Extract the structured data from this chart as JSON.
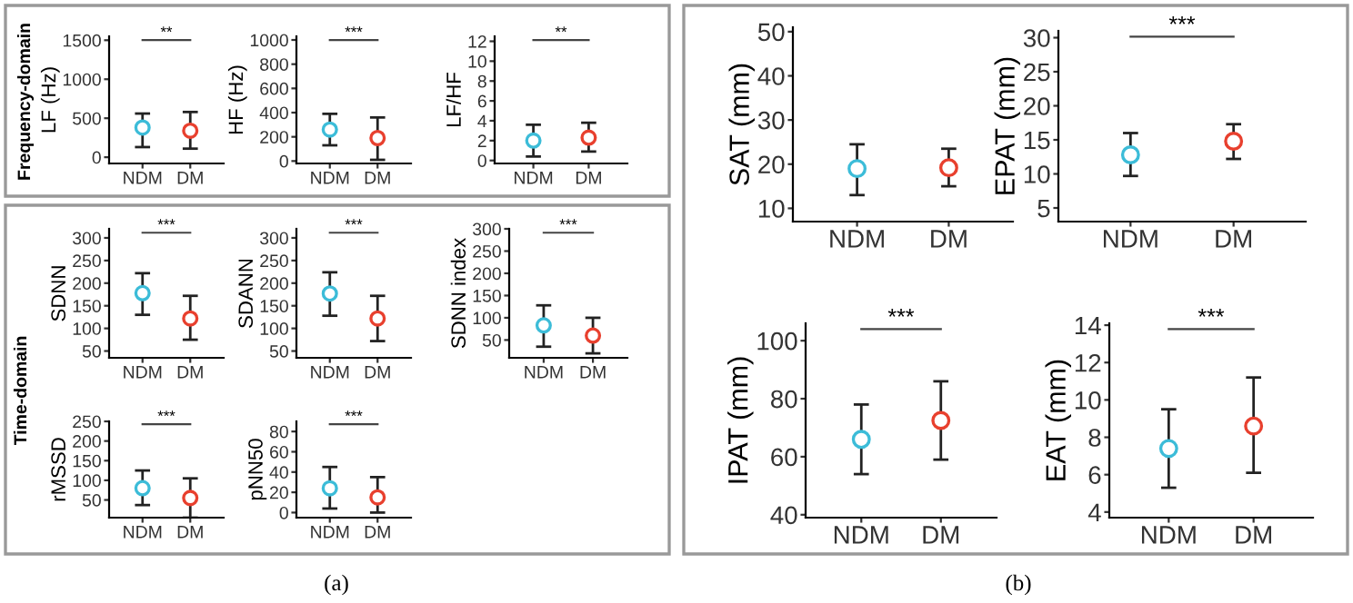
{
  "chart_data": [
    {
      "type": "scatter",
      "ylabel": "LF (Hz)",
      "categories": [
        "NDM",
        "DM"
      ],
      "values": [
        380,
        340
      ],
      "errors": [
        [
          130,
          560
        ],
        [
          110,
          580
        ]
      ],
      "colors": [
        "#3cbcd8",
        "#e8402e"
      ],
      "ylim": [
        -80,
        1550
      ],
      "yticks": [
        0,
        500,
        1000,
        1500
      ],
      "annotations": [
        "**",
        "Frequency-domain"
      ]
    },
    {
      "type": "scatter",
      "ylabel": "HF (Hz)",
      "categories": [
        "NDM",
        "DM"
      ],
      "values": [
        260,
        190
      ],
      "errors": [
        [
          130,
          390
        ],
        [
          10,
          360
        ]
      ],
      "colors": [
        "#3cbcd8",
        "#e8402e"
      ],
      "ylim": [
        -20,
        1030
      ],
      "yticks": [
        0,
        200,
        400,
        600,
        800,
        1000
      ],
      "annotations": [
        "***"
      ]
    },
    {
      "type": "scatter",
      "ylabel": "LF/HF",
      "categories": [
        "NDM",
        "DM"
      ],
      "values": [
        2.0,
        2.3
      ],
      "errors": [
        [
          0.4,
          3.6
        ],
        [
          0.9,
          3.8
        ]
      ],
      "colors": [
        "#3cbcd8",
        "#e8402e"
      ],
      "ylim": [
        -0.3,
        12.5
      ],
      "yticks": [
        0,
        2,
        4,
        6,
        8,
        10,
        12
      ],
      "annotations": [
        "**"
      ]
    },
    {
      "type": "scatter",
      "ylabel": "SDNN",
      "categories": [
        "NDM",
        "DM"
      ],
      "values": [
        178,
        122
      ],
      "errors": [
        [
          130,
          222
        ],
        [
          75,
          172
        ]
      ],
      "colors": [
        "#3cbcd8",
        "#e8402e"
      ],
      "ylim": [
        35,
        320
      ],
      "yticks": [
        50,
        100,
        150,
        200,
        250,
        300
      ],
      "annotations": [
        "***",
        "Time-domain"
      ]
    },
    {
      "type": "scatter",
      "ylabel": "SDANN",
      "categories": [
        "NDM",
        "DM"
      ],
      "values": [
        177,
        122
      ],
      "errors": [
        [
          128,
          224
        ],
        [
          72,
          172
        ]
      ],
      "colors": [
        "#3cbcd8",
        "#e8402e"
      ],
      "ylim": [
        35,
        320
      ],
      "yticks": [
        50,
        100,
        150,
        200,
        250,
        300
      ],
      "annotations": [
        "***"
      ]
    },
    {
      "type": "scatter",
      "ylabel": "SDNN index",
      "categories": [
        "NDM",
        "DM"
      ],
      "values": [
        83,
        60
      ],
      "errors": [
        [
          35,
          128
        ],
        [
          20,
          100
        ]
      ],
      "colors": [
        "#3cbcd8",
        "#e8402e"
      ],
      "ylim": [
        10,
        300
      ],
      "yticks": [
        50,
        100,
        150,
        200,
        250,
        300
      ],
      "annotations": [
        "***"
      ]
    },
    {
      "type": "scatter",
      "ylabel": "rMSSD",
      "categories": [
        "NDM",
        "DM"
      ],
      "values": [
        80,
        55
      ],
      "errors": [
        [
          37,
          125
        ],
        [
          5,
          105
        ]
      ],
      "colors": [
        "#3cbcd8",
        "#e8402e"
      ],
      "ylim": [
        5,
        250
      ],
      "yticks": [
        50,
        100,
        150,
        200,
        250
      ],
      "annotations": [
        "***"
      ]
    },
    {
      "type": "scatter",
      "ylabel": "pNN50",
      "categories": [
        "NDM",
        "DM"
      ],
      "values": [
        24,
        15
      ],
      "errors": [
        [
          4,
          45
        ],
        [
          0,
          35
        ]
      ],
      "colors": [
        "#3cbcd8",
        "#e8402e"
      ],
      "ylim": [
        -5,
        90
      ],
      "yticks": [
        0,
        20,
        40,
        60,
        80
      ],
      "annotations": [
        "***",
        "(a)"
      ]
    },
    {
      "type": "scatter",
      "ylabel": "SAT (mm)",
      "categories": [
        "NDM",
        "DM"
      ],
      "values": [
        19,
        19.2
      ],
      "errors": [
        [
          13,
          24.5
        ],
        [
          15,
          23.5
        ]
      ],
      "colors": [
        "#3cbcd8",
        "#e8402e"
      ],
      "ylim": [
        7,
        51
      ],
      "yticks": [
        10,
        20,
        30,
        40,
        50
      ]
    },
    {
      "type": "scatter",
      "ylabel": "EPAT (mm)",
      "categories": [
        "NDM",
        "DM"
      ],
      "values": [
        12.8,
        14.8
      ],
      "errors": [
        [
          9.7,
          16
        ],
        [
          12.2,
          17.3
        ]
      ],
      "colors": [
        "#3cbcd8",
        "#e8402e"
      ],
      "ylim": [
        3,
        31
      ],
      "yticks": [
        5,
        10,
        15,
        20,
        25,
        30
      ],
      "annotations": [
        "***"
      ]
    },
    {
      "type": "scatter",
      "ylabel": "IPAT (mm)",
      "categories": [
        "NDM",
        "DM"
      ],
      "values": [
        66,
        72.5
      ],
      "errors": [
        [
          54,
          78
        ],
        [
          59,
          86
        ]
      ],
      "colors": [
        "#3cbcd8",
        "#e8402e"
      ],
      "ylim": [
        39,
        106
      ],
      "yticks": [
        40,
        60,
        80,
        100
      ],
      "annotations": [
        "***"
      ]
    },
    {
      "type": "scatter",
      "ylabel": "EAT (mm)",
      "categories": [
        "NDM",
        "DM"
      ],
      "values": [
        7.4,
        8.6
      ],
      "errors": [
        [
          5.3,
          9.5
        ],
        [
          6.1,
          11.2
        ]
      ],
      "colors": [
        "#3cbcd8",
        "#e8402e"
      ],
      "ylim": [
        3.7,
        14.1
      ],
      "yticks": [
        4,
        6,
        8,
        10,
        12,
        14
      ],
      "annotations": [
        "***",
        "(b)"
      ]
    }
  ]
}
